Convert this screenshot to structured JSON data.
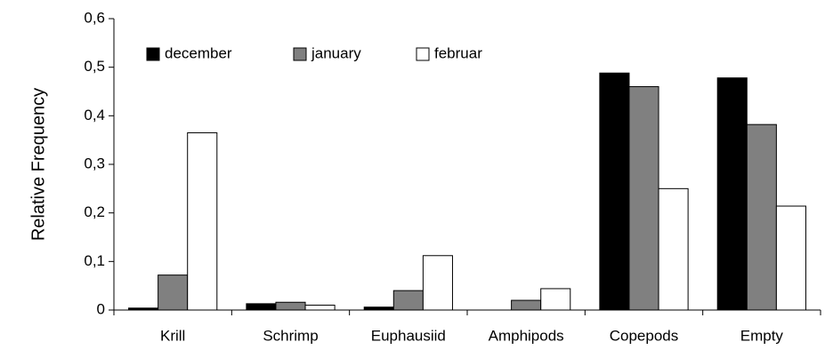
{
  "chart_data": {
    "type": "bar",
    "y_label": "Relative Frequency",
    "categories": [
      "Krill",
      "Schrimp",
      "Euphausiid",
      "Amphipods",
      "Copepods",
      "Empty"
    ],
    "series": [
      {
        "name": "december",
        "color": "#000000",
        "values": [
          0.004,
          0.013,
          0.006,
          0,
          0.488,
          0.478
        ]
      },
      {
        "name": "january",
        "color": "#808080",
        "values": [
          0.072,
          0.016,
          0.04,
          0.02,
          0.46,
          0.382
        ]
      },
      {
        "name": "februar",
        "color": "#ffffff",
        "values": [
          0.365,
          0.01,
          0.112,
          0.044,
          0.25,
          0.214
        ]
      }
    ],
    "ylim": [
      0,
      0.6
    ],
    "yticks": [
      0,
      {
        "value": 0.1,
        "label": "0,1"
      },
      {
        "value": 0.2,
        "label": "0,2"
      },
      {
        "value": 0.3,
        "label": "0,3"
      },
      {
        "value": 0.4,
        "label": "0,4"
      },
      {
        "value": 0.5,
        "label": "0,5"
      },
      {
        "value": 0.6,
        "label": "0,6"
      }
    ],
    "legend": "top-left"
  }
}
